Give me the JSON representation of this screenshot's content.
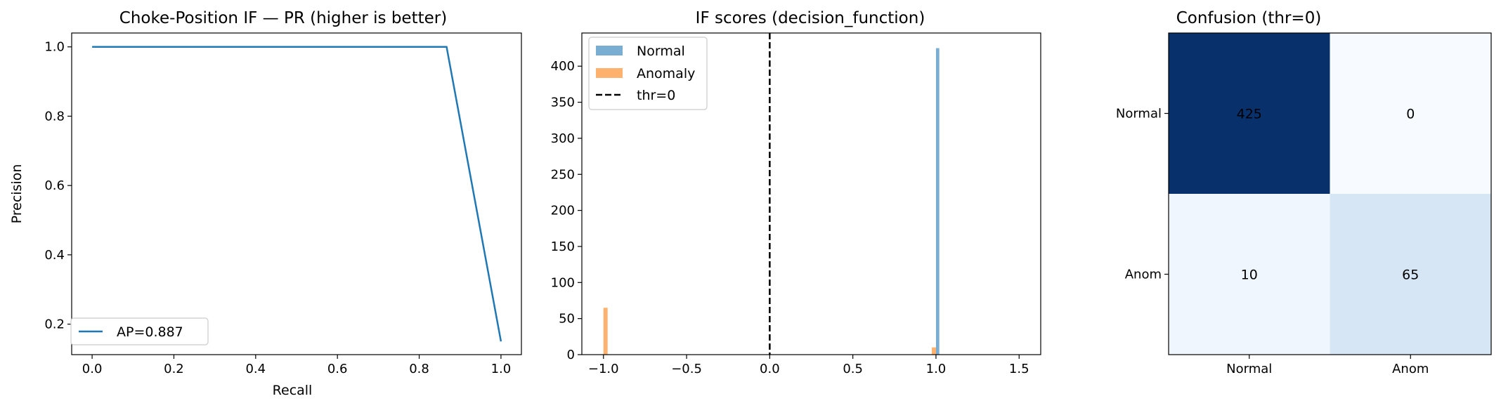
{
  "colors": {
    "blue": "#1f77b4",
    "hist_normal": "#1f77b4",
    "hist_anomaly": "#ff7f0e",
    "threshold": "#000000"
  },
  "chart_data": [
    {
      "type": "line",
      "title": "Choke-Position IF — PR (higher is better)",
      "xlabel": "Recall",
      "ylabel": "Precision",
      "xlim": [
        -0.05,
        1.05
      ],
      "ylim": [
        0.112,
        1.04
      ],
      "x_ticks": [
        0.0,
        0.2,
        0.4,
        0.6,
        0.8,
        1.0
      ],
      "x_tick_labels": [
        "0.0",
        "0.2",
        "0.4",
        "0.6",
        "0.8",
        "1.0"
      ],
      "y_ticks": [
        0.2,
        0.4,
        0.6,
        0.8,
        1.0
      ],
      "y_tick_labels": [
        "0.2",
        "0.4",
        "0.6",
        "0.8",
        "1.0"
      ],
      "grid": false,
      "legend_position": "lower-left",
      "series": [
        {
          "name": "AP=0.887",
          "color": "#1f77b4",
          "x": [
            0.0,
            0.867,
            1.0
          ],
          "y": [
            1.0,
            1.0,
            0.15
          ]
        }
      ]
    },
    {
      "type": "histogram",
      "title": "IF scores (decision_function)",
      "xlim": [
        -1.13,
        1.63
      ],
      "ylim": [
        0,
        446
      ],
      "x_ticks": [
        -1.0,
        -0.5,
        0.0,
        0.5,
        1.0,
        1.5
      ],
      "x_tick_labels": [
        "−1.0",
        "−0.5",
        "0.0",
        "0.5",
        "1.0",
        "1.5"
      ],
      "y_ticks": [
        0,
        50,
        100,
        150,
        200,
        250,
        300,
        350,
        400
      ],
      "y_tick_labels": [
        "0",
        "50",
        "100",
        "150",
        "200",
        "250",
        "300",
        "350",
        "400"
      ],
      "grid": false,
      "legend_position": "upper-left",
      "series": [
        {
          "name": "Normal",
          "color": "#1f77b4",
          "opacity": 0.6,
          "bins": [
            {
              "x0": 1.0,
              "x1": 1.02,
              "count": 425
            }
          ]
        },
        {
          "name": "Anomaly",
          "color": "#ff7f0e",
          "opacity": 0.6,
          "bins": [
            {
              "x0": -1.0,
              "x1": -0.975,
              "count": 65
            },
            {
              "x0": 0.975,
              "x1": 1.0,
              "count": 10
            }
          ]
        }
      ],
      "threshold": {
        "name": "thr=0",
        "x": 0.0,
        "style": "dashed"
      }
    },
    {
      "type": "heatmap",
      "title": "Confusion (thr=0)",
      "row_labels": [
        "Normal",
        "Anom"
      ],
      "col_labels": [
        "Normal",
        "Anom"
      ],
      "values": [
        [
          425,
          0
        ],
        [
          10,
          65
        ]
      ],
      "cell_colors": [
        [
          "#08306b",
          "#f7fbff"
        ],
        [
          "#f0f6fd",
          "#d6e6f4"
        ]
      ],
      "text_color": "#000000"
    }
  ]
}
